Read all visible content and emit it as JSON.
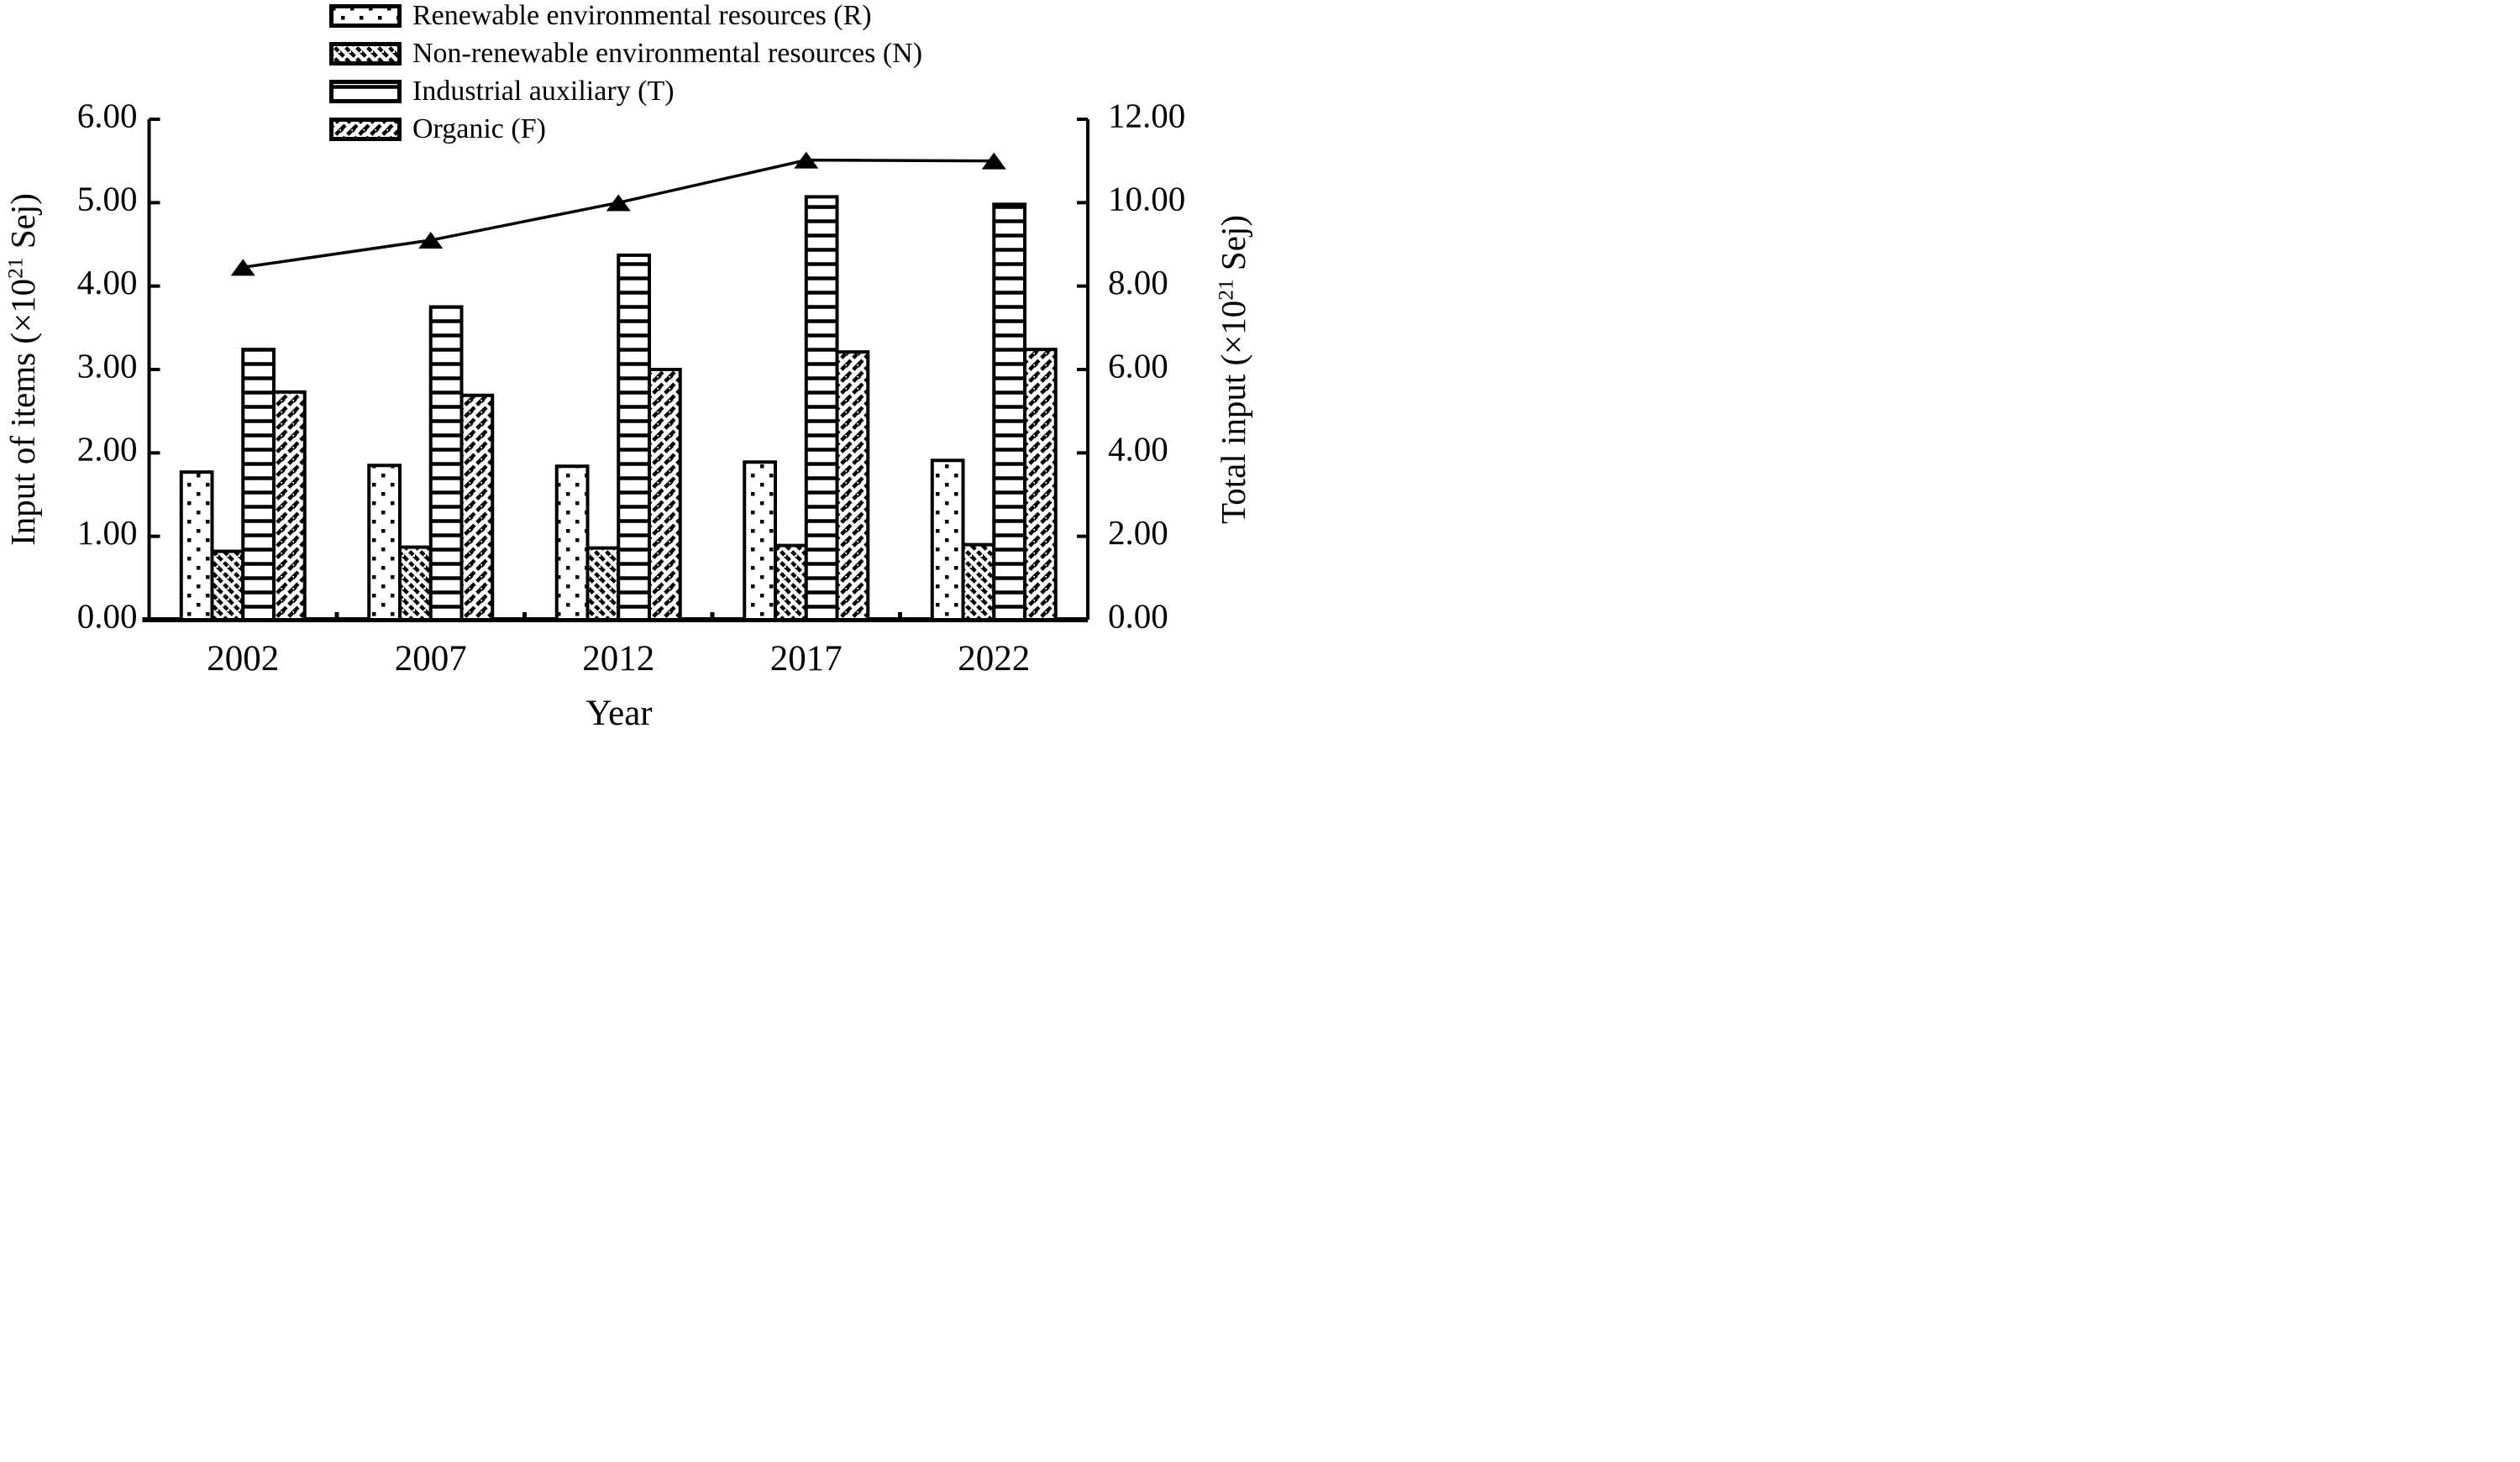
{
  "figure": {
    "background": "#ffffff",
    "ink": "#000000"
  },
  "legend": {
    "position": "top",
    "items": [
      {
        "id": "R",
        "label": "Renewable environmental resources (R)",
        "pattern": "dots"
      },
      {
        "id": "N",
        "label": "Non-renewable environmental resources (N)",
        "pattern": "hatch-back"
      },
      {
        "id": "T",
        "label": "Industrial auxiliary (T)",
        "pattern": "hlines"
      },
      {
        "id": "F",
        "label": "Organic (F)",
        "pattern": "hatch-fwd"
      }
    ]
  },
  "chart_data": {
    "type": "bar+line",
    "categories": [
      "2002",
      "2007",
      "2012",
      "2017",
      "2022"
    ],
    "series": [
      {
        "name": "Renewable environmental resources (R)",
        "id": "R",
        "pattern": "dots",
        "axis": "left",
        "values": [
          1.77,
          1.85,
          1.84,
          1.89,
          1.91
        ]
      },
      {
        "name": "Non-renewable environmental resources (N)",
        "id": "N",
        "pattern": "hatch-back",
        "axis": "left",
        "values": [
          0.82,
          0.87,
          0.86,
          0.89,
          0.9
        ]
      },
      {
        "name": "Industrial auxiliary (T)",
        "id": "T",
        "pattern": "hlines",
        "axis": "left",
        "values": [
          3.24,
          3.75,
          4.37,
          5.07,
          4.98
        ]
      },
      {
        "name": "Organic (F)",
        "id": "F",
        "pattern": "hatch-fwd",
        "axis": "left",
        "values": [
          2.73,
          2.69,
          3.0,
          3.21,
          3.24
        ]
      }
    ],
    "line_series": {
      "name": "Total input",
      "marker": "triangle",
      "axis": "right",
      "values": [
        8.45,
        9.1,
        10.0,
        11.02,
        11.0
      ]
    },
    "xlabel": "Year",
    "left_axis": {
      "title_pre": "Input of items (×10",
      "title_sup": "21",
      "title_post": " Sej)",
      "min": 0,
      "max": 6,
      "tick_step": 1,
      "tick_labels": [
        "0.00",
        "1.00",
        "2.00",
        "3.00",
        "4.00",
        "5.00",
        "6.00"
      ]
    },
    "right_axis": {
      "title_pre": "Total input (×10",
      "title_sup": "21",
      "title_post": " Sej)",
      "min": 0,
      "max": 12,
      "tick_step": 2,
      "tick_labels": [
        "0.00",
        "2.00",
        "4.00",
        "6.00",
        "8.00",
        "10.00",
        "12.00"
      ]
    },
    "grid": false,
    "legend_position": "top"
  }
}
